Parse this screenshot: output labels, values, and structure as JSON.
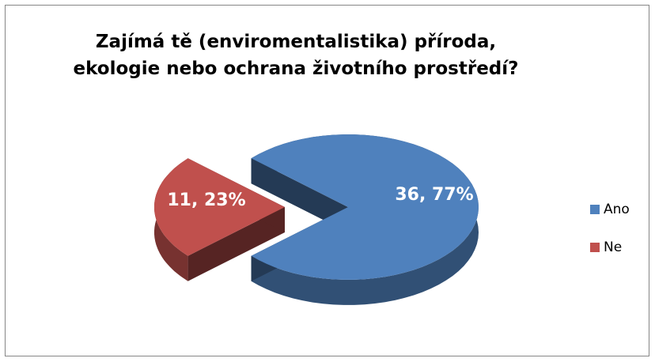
{
  "chart_data": {
    "type": "pie",
    "title": "Zajímá tě (enviromentalistika) příroda, ekologie nebo ochrana životního prostředí?",
    "categories": [
      "Ano",
      "Ne"
    ],
    "values": [
      36,
      11
    ],
    "value_labels": [
      "36, 77%",
      "11, 23%"
    ],
    "colors": [
      "#4f81bd",
      "#c0504d"
    ],
    "legend": "right"
  }
}
